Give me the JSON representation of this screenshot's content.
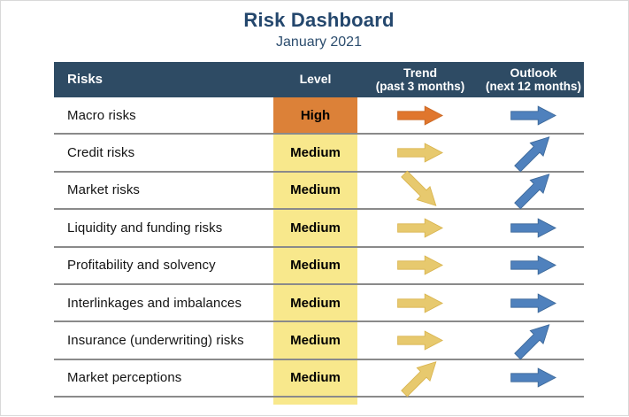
{
  "header": {
    "title": "Risk Dashboard",
    "subtitle": "January 2021"
  },
  "table": {
    "columns": [
      {
        "label": "Risks",
        "sublabel": ""
      },
      {
        "label": "Level",
        "sublabel": ""
      },
      {
        "label": "Trend",
        "sublabel": "(past 3 months)"
      },
      {
        "label": "Outlook",
        "sublabel": "(next 12 months)"
      }
    ],
    "rows": [
      {
        "risk": "Macro risks",
        "level": "High",
        "level_style": "high",
        "trend": {
          "icon": "arrow",
          "direction": "right",
          "color": "orange"
        },
        "outlook": {
          "icon": "arrow",
          "direction": "right",
          "color": "blue"
        }
      },
      {
        "risk": "Credit risks",
        "level": "Medium",
        "level_style": "medium",
        "trend": {
          "icon": "arrow",
          "direction": "right",
          "color": "yellow"
        },
        "outlook": {
          "icon": "arrow",
          "direction": "up",
          "color": "blue"
        }
      },
      {
        "risk": "Market risks",
        "level": "Medium",
        "level_style": "medium",
        "trend": {
          "icon": "arrow",
          "direction": "down",
          "color": "yellow"
        },
        "outlook": {
          "icon": "arrow",
          "direction": "up",
          "color": "blue"
        }
      },
      {
        "risk": "Liquidity and funding risks",
        "level": "Medium",
        "level_style": "medium",
        "trend": {
          "icon": "arrow",
          "direction": "right",
          "color": "yellow"
        },
        "outlook": {
          "icon": "arrow",
          "direction": "right",
          "color": "blue"
        }
      },
      {
        "risk": "Profitability and solvency",
        "level": "Medium",
        "level_style": "medium",
        "trend": {
          "icon": "arrow",
          "direction": "right",
          "color": "yellow"
        },
        "outlook": {
          "icon": "arrow",
          "direction": "right",
          "color": "blue"
        }
      },
      {
        "risk": "Interlinkages and imbalances",
        "level": "Medium",
        "level_style": "medium",
        "trend": {
          "icon": "arrow",
          "direction": "right",
          "color": "yellow"
        },
        "outlook": {
          "icon": "arrow",
          "direction": "right",
          "color": "blue"
        }
      },
      {
        "risk": "Insurance (underwriting) risks",
        "level": "Medium",
        "level_style": "medium",
        "trend": {
          "icon": "arrow",
          "direction": "right",
          "color": "yellow"
        },
        "outlook": {
          "icon": "arrow",
          "direction": "up",
          "color": "blue"
        }
      },
      {
        "risk": "Market perceptions",
        "level": "Medium",
        "level_style": "medium",
        "trend": {
          "icon": "arrow",
          "direction": "up",
          "color": "yellow"
        },
        "outlook": {
          "icon": "arrow",
          "direction": "right",
          "color": "blue"
        }
      }
    ]
  },
  "colors": {
    "header_bg": "#2e4b64",
    "title_text": "#24476d",
    "separator": "#8a8a8a",
    "level_bg": {
      "high": "#dc8138",
      "medium": "#f8e88c"
    },
    "arrows": {
      "orange": {
        "fill": "#e0762d",
        "stroke": "#c96723"
      },
      "yellow": {
        "fill": "#e7c96e",
        "stroke": "#d9b44e"
      },
      "blue": {
        "fill": "#4f81bd",
        "stroke": "#3c6899"
      }
    }
  },
  "chart_data": {
    "type": "table",
    "title": "Risk Dashboard",
    "subtitle": "January 2021",
    "columns": [
      "Risks",
      "Level",
      "Trend (past 3 months)",
      "Outlook (next 12 months)"
    ],
    "rows": [
      [
        "Macro risks",
        "High",
        "stable",
        "stable"
      ],
      [
        "Credit risks",
        "Medium",
        "stable",
        "increasing"
      ],
      [
        "Market risks",
        "Medium",
        "decreasing",
        "increasing"
      ],
      [
        "Liquidity and funding risks",
        "Medium",
        "stable",
        "stable"
      ],
      [
        "Profitability and solvency",
        "Medium",
        "stable",
        "stable"
      ],
      [
        "Interlinkages and imbalances",
        "Medium",
        "stable",
        "stable"
      ],
      [
        "Insurance (underwriting) risks",
        "Medium",
        "stable",
        "increasing"
      ],
      [
        "Market perceptions",
        "Medium",
        "increasing",
        "stable"
      ]
    ]
  }
}
